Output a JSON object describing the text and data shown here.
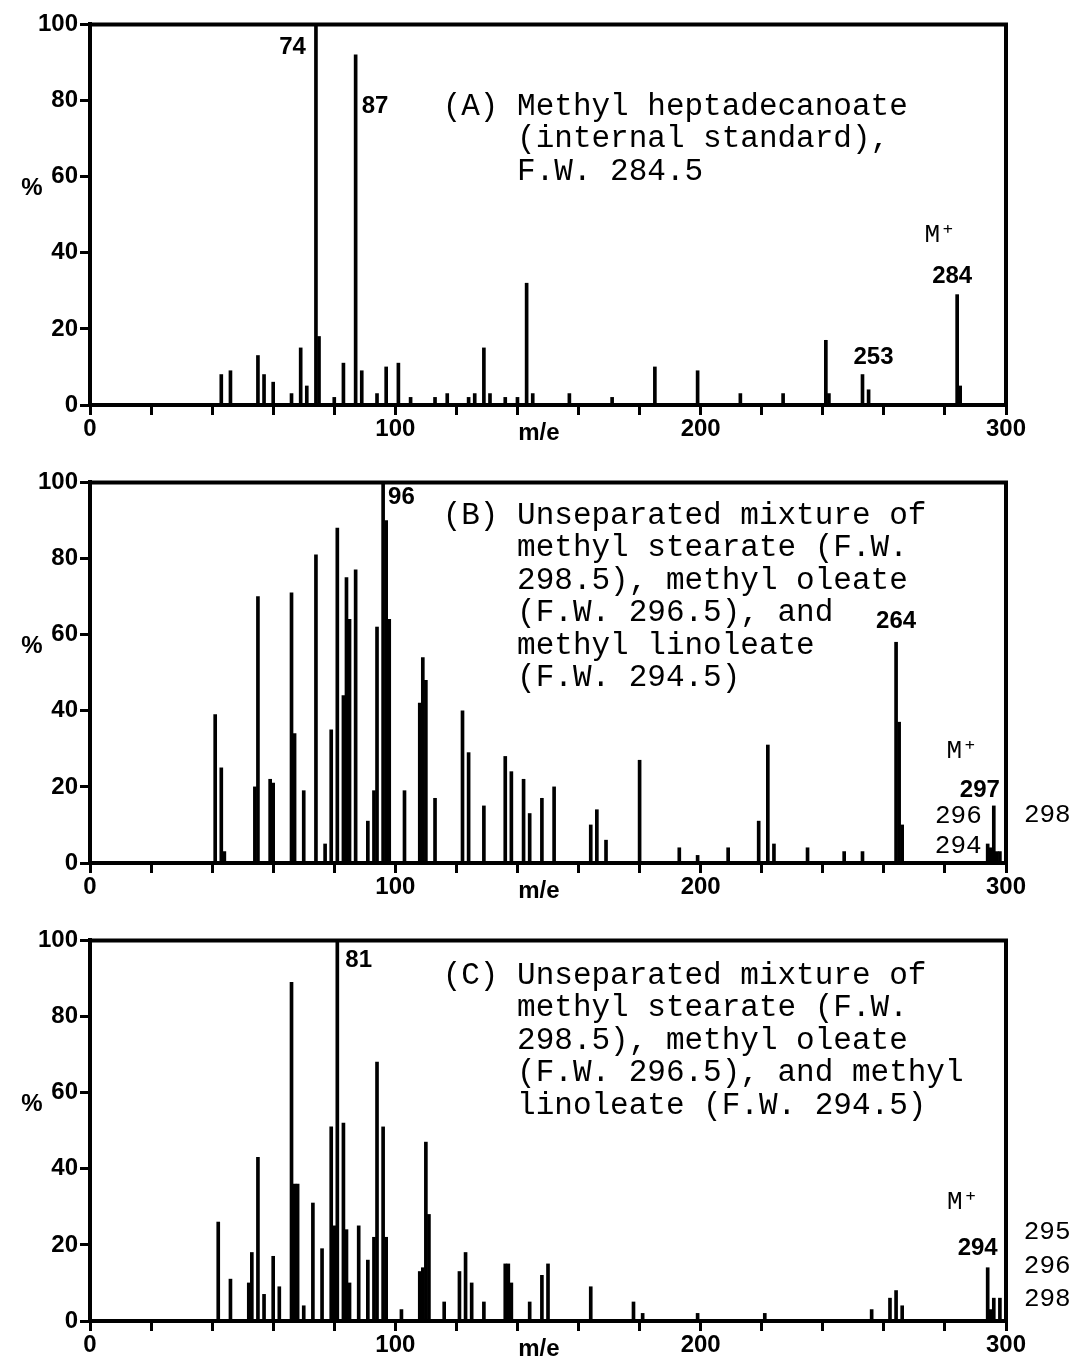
{
  "chart_data": [
    {
      "type": "bar",
      "xlabel": "m/e",
      "ylabel": "%",
      "color": "#000000",
      "xlim": [
        0,
        300
      ],
      "ylim": [
        0,
        100
      ],
      "xticks": [
        0,
        {
          "value": 20,
          "label": null
        },
        {
          "value": 40,
          "label": null
        },
        {
          "value": 60,
          "label": null
        },
        {
          "value": 80,
          "label": null
        },
        100,
        {
          "value": 120,
          "label": null
        },
        {
          "value": 140,
          "label": null
        },
        {
          "value": 160,
          "label": null
        },
        {
          "value": 180,
          "label": null
        },
        200,
        {
          "value": 220,
          "label": null
        },
        {
          "value": 240,
          "label": null
        },
        {
          "value": 260,
          "label": null
        },
        {
          "value": 280,
          "label": null
        },
        300
      ],
      "yticks": [
        0,
        20,
        40,
        60,
        80,
        100
      ],
      "x": [
        43,
        46,
        55,
        57,
        60,
        66,
        69,
        71,
        74,
        75,
        80,
        83,
        87,
        89,
        94,
        97,
        101,
        105,
        113,
        117,
        124,
        126,
        129,
        131,
        136,
        140,
        143,
        145,
        157,
        171,
        185,
        199,
        213,
        227,
        241,
        242,
        253,
        255,
        284,
        285
      ],
      "values": [
        8,
        9,
        13,
        8,
        6,
        3,
        15,
        5,
        100,
        18,
        2,
        11,
        92,
        9,
        3,
        10,
        11,
        2,
        2,
        3,
        2,
        3,
        15,
        3,
        2,
        2,
        32,
        3,
        3,
        2,
        10,
        9,
        3,
        3,
        17,
        3,
        8,
        4,
        29,
        5
      ],
      "annotations": [
        "(A) Methyl heptadecanoate\n(internal standard),\nF.W. 284.5",
        {
          "text": "74",
          "x": 74,
          "y": 100
        },
        {
          "text": "87",
          "x": 87,
          "y": 92
        },
        {
          "text": "253",
          "x": 253,
          "y": 8
        },
        {
          "text": "284",
          "x": 284,
          "y": 29
        },
        {
          "text": "M⁺",
          "x": 284,
          "y": 29
        }
      ]
    },
    {
      "type": "bar",
      "xlabel": "m/e",
      "ylabel": "%",
      "color": "#000000",
      "xlim": [
        0,
        300
      ],
      "ylim": [
        0,
        100
      ],
      "xticks": [
        0,
        {
          "value": 20,
          "label": null
        },
        {
          "value": 40,
          "label": null
        },
        {
          "value": 60,
          "label": null
        },
        {
          "value": 80,
          "label": null
        },
        100,
        {
          "value": 120,
          "label": null
        },
        {
          "value": 140,
          "label": null
        },
        {
          "value": 160,
          "label": null
        },
        {
          "value": 180,
          "label": null
        },
        200,
        {
          "value": 220,
          "label": null
        },
        {
          "value": 240,
          "label": null
        },
        {
          "value": 260,
          "label": null
        },
        {
          "value": 280,
          "label": null
        },
        300
      ],
      "yticks": [
        0,
        20,
        40,
        60,
        80,
        100
      ],
      "x": [
        41,
        43,
        44,
        54,
        55,
        59,
        60,
        66,
        67,
        70,
        74,
        77,
        79,
        81,
        83,
        84,
        85,
        87,
        91,
        93,
        94,
        96,
        97,
        98,
        103,
        108,
        109,
        110,
        113,
        122,
        124,
        129,
        136,
        138,
        142,
        144,
        148,
        152,
        164,
        166,
        169,
        180,
        193,
        199,
        209,
        219,
        222,
        224,
        235,
        247,
        253,
        264,
        265,
        266,
        294,
        295,
        296,
        297,
        298
      ],
      "values": [
        39,
        25,
        3,
        20,
        70,
        22,
        21,
        71,
        34,
        19,
        81,
        5,
        35,
        88,
        44,
        75,
        64,
        77,
        11,
        19,
        62,
        100,
        90,
        64,
        19,
        42,
        54,
        48,
        17,
        40,
        29,
        15,
        28,
        24,
        22,
        13,
        17,
        20,
        10,
        14,
        6,
        27,
        4,
        2,
        4,
        11,
        31,
        5,
        4,
        3,
        3,
        58,
        37,
        10,
        5,
        4,
        15,
        3,
        3
      ],
      "annotations": [
        "(B) Unseparated mixture of\nmethyl stearate (F.W.\n298.5), methyl oleate\n(F.W. 296.5), and\nmethyl linoleate\n(F.W. 294.5)",
        {
          "text": "96",
          "x": 96,
          "y": 100
        },
        {
          "text": "264",
          "x": 264,
          "y": 58
        },
        "M⁺",
        {
          "text": "297",
          "x": 297,
          "y": 3
        },
        {
          "text": "296",
          "x": 296,
          "y": 15
        },
        {
          "text": "294",
          "x": 294,
          "y": 5
        },
        {
          "text": "298",
          "x": 298,
          "y": 3
        }
      ]
    },
    {
      "type": "bar",
      "xlabel": "m/e",
      "ylabel": "%",
      "color": "#000000",
      "xlim": [
        0,
        300
      ],
      "ylim": [
        0,
        100
      ],
      "xticks": [
        0,
        {
          "value": 20,
          "label": null
        },
        {
          "value": 40,
          "label": null
        },
        {
          "value": 60,
          "label": null
        },
        {
          "value": 80,
          "label": null
        },
        100,
        {
          "value": 120,
          "label": null
        },
        {
          "value": 140,
          "label": null
        },
        {
          "value": 160,
          "label": null
        },
        {
          "value": 180,
          "label": null
        },
        200,
        {
          "value": 220,
          "label": null
        },
        {
          "value": 240,
          "label": null
        },
        {
          "value": 260,
          "label": null
        },
        {
          "value": 280,
          "label": null
        },
        300
      ],
      "yticks": [
        0,
        20,
        40,
        60,
        80,
        100
      ],
      "x": [
        42,
        46,
        52,
        53,
        55,
        57,
        60,
        62,
        66,
        67,
        68,
        70,
        73,
        76,
        79,
        80,
        81,
        83,
        84,
        85,
        88,
        91,
        93,
        94,
        96,
        97,
        102,
        108,
        109,
        110,
        111,
        116,
        121,
        123,
        125,
        129,
        136,
        137,
        138,
        144,
        148,
        150,
        164,
        178,
        181,
        199,
        221,
        256,
        262,
        264,
        266,
        294,
        295,
        296,
        298
      ],
      "values": [
        26,
        11,
        10,
        18,
        43,
        7,
        17,
        9,
        89,
        36,
        36,
        4,
        31,
        19,
        51,
        25,
        100,
        52,
        24,
        10,
        25,
        16,
        22,
        68,
        51,
        22,
        3,
        13,
        14,
        47,
        28,
        5,
        13,
        18,
        10,
        5,
        15,
        15,
        10,
        5,
        12,
        15,
        9,
        5,
        2,
        2,
        2,
        3,
        6,
        8,
        4,
        14,
        3,
        6,
        6
      ],
      "annotations": [
        "(C) Unseparated mixture of\nmethyl stearate (F.W.\n298.5), methyl oleate\n(F.W. 296.5), and methyl\nlinoleate (F.W. 294.5)",
        {
          "text": "81",
          "x": 81,
          "y": 100
        },
        {
          "text": "M⁺",
          "x": 294,
          "y": 14
        },
        {
          "text": "294",
          "x": 294,
          "y": 14
        },
        {
          "text": "295",
          "x": 295,
          "y": 3
        },
        {
          "text": "296",
          "x": 296,
          "y": 6
        },
        {
          "text": "298",
          "x": 298,
          "y": 6
        }
      ]
    }
  ]
}
